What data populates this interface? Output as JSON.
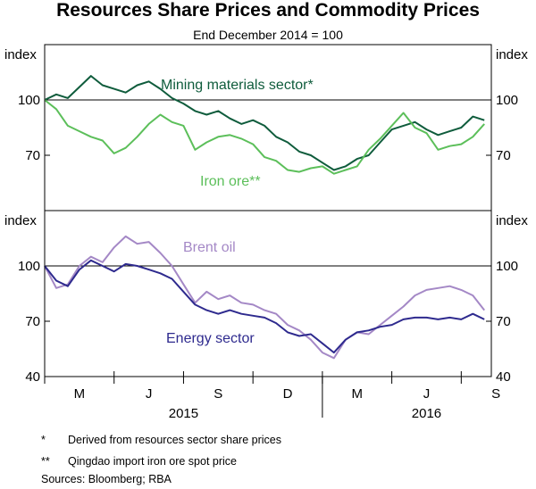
{
  "title": "Resources Share Prices and Commodity Prices",
  "subtitle": "End December 2014 = 100",
  "colors": {
    "mining": "#0f5c3c",
    "iron": "#5cbf5a",
    "brent": "#a488c6",
    "energy": "#2e2a8e",
    "axis": "#000000"
  },
  "notes": [
    {
      "mark": "*",
      "text": "Derived from resources sector share prices"
    },
    {
      "mark": "**",
      "text": "Qingdao import iron ore spot price"
    }
  ],
  "sources": "Sources:   Bloomberg; RBA",
  "chart_data": [
    {
      "type": "line",
      "panel": "top",
      "axis_label": "index",
      "ylim": [
        40,
        130
      ],
      "reference_line": 100,
      "y_ticks": [
        70,
        100
      ],
      "x_range": [
        0,
        19.3
      ],
      "series": [
        {
          "name": "Mining materials sector",
          "label": "Mining materials sector*",
          "color_key": "mining",
          "x": [
            0,
            0.5,
            1,
            1.5,
            2,
            2.5,
            3,
            3.5,
            4,
            4.5,
            5,
            5.5,
            6,
            6.5,
            7,
            7.5,
            8,
            8.5,
            9,
            9.5,
            10,
            10.5,
            11,
            11.5,
            12,
            12.5,
            13,
            13.5,
            14,
            14.5,
            15,
            15.5,
            16,
            16.5,
            17,
            17.5,
            18,
            18.5,
            19
          ],
          "values": [
            100,
            103,
            101,
            107,
            113,
            108,
            106,
            104,
            108,
            110,
            106,
            101,
            98,
            94,
            92,
            94,
            90,
            87,
            89,
            86,
            80,
            77,
            72,
            70,
            66,
            62,
            64,
            68,
            70,
            77,
            84,
            86,
            88,
            84,
            81,
            83,
            85,
            91,
            89
          ]
        },
        {
          "name": "Iron ore",
          "label": "Iron ore**",
          "color_key": "iron",
          "x": [
            0,
            0.5,
            1,
            1.5,
            2,
            2.5,
            3,
            3.5,
            4,
            4.5,
            5,
            5.5,
            6,
            6.5,
            7,
            7.5,
            8,
            8.5,
            9,
            9.5,
            10,
            10.5,
            11,
            11.5,
            12,
            12.5,
            13,
            13.5,
            14,
            14.5,
            15,
            15.5,
            16,
            16.5,
            17,
            17.5,
            18,
            18.5,
            19
          ],
          "values": [
            100,
            95,
            86,
            83,
            80,
            78,
            71,
            74,
            80,
            87,
            92,
            88,
            86,
            73,
            77,
            80,
            81,
            79,
            76,
            69,
            67,
            62,
            61,
            63,
            64,
            60,
            62,
            64,
            73,
            79,
            86,
            93,
            85,
            82,
            73,
            75,
            76,
            80,
            87
          ]
        }
      ]
    },
    {
      "type": "line",
      "panel": "bottom",
      "axis_label": "index",
      "ylim": [
        40,
        130
      ],
      "reference_line": 100,
      "y_ticks": [
        40,
        70,
        100
      ],
      "x_range": [
        0,
        19.3
      ],
      "series": [
        {
          "name": "Brent oil",
          "label": "Brent oil",
          "color_key": "brent",
          "x": [
            0,
            0.5,
            1,
            1.5,
            2,
            2.5,
            3,
            3.5,
            4,
            4.5,
            5,
            5.5,
            6,
            6.5,
            7,
            7.5,
            8,
            8.5,
            9,
            9.5,
            10,
            10.5,
            11,
            11.5,
            12,
            12.5,
            13,
            13.5,
            14,
            14.5,
            15,
            15.5,
            16,
            16.5,
            17,
            17.5,
            18,
            18.5,
            19
          ],
          "values": [
            100,
            88,
            90,
            100,
            105,
            102,
            110,
            116,
            112,
            113,
            107,
            100,
            90,
            80,
            86,
            82,
            84,
            80,
            79,
            76,
            74,
            68,
            65,
            60,
            53,
            50,
            60,
            64,
            63,
            68,
            73,
            78,
            84,
            87,
            88,
            89,
            87,
            84,
            76
          ]
        },
        {
          "name": "Energy sector",
          "label": "Energy sector",
          "color_key": "energy",
          "x": [
            0,
            0.5,
            1,
            1.5,
            2,
            2.5,
            3,
            3.5,
            4,
            4.5,
            5,
            5.5,
            6,
            6.5,
            7,
            7.5,
            8,
            8.5,
            9,
            9.5,
            10,
            10.5,
            11,
            11.5,
            12,
            12.5,
            13,
            13.5,
            14,
            14.5,
            15,
            15.5,
            16,
            16.5,
            17,
            17.5,
            18,
            18.5,
            19
          ],
          "values": [
            100,
            92,
            89,
            98,
            103,
            100,
            97,
            101,
            100,
            98,
            96,
            93,
            86,
            79,
            76,
            74,
            76,
            74,
            73,
            72,
            69,
            64,
            62,
            63,
            58,
            53,
            60,
            64,
            65,
            67,
            68,
            71,
            72,
            72,
            71,
            72,
            71,
            74,
            71
          ]
        }
      ]
    }
  ],
  "x_axis": {
    "month_labels": [
      {
        "label": "M",
        "x": 1.5
      },
      {
        "label": "J",
        "x": 4.5
      },
      {
        "label": "S",
        "x": 7.5
      },
      {
        "label": "D",
        "x": 10.5
      },
      {
        "label": "M",
        "x": 13.5
      },
      {
        "label": "J",
        "x": 16.5
      },
      {
        "label": "S",
        "x": 19.5
      }
    ],
    "tick_positions": [
      0,
      3,
      6,
      9,
      12,
      15,
      18
    ],
    "years": [
      {
        "label": "2015",
        "x": 6
      },
      {
        "label": "2016",
        "x": 16.5
      }
    ],
    "year_divider": 12
  }
}
